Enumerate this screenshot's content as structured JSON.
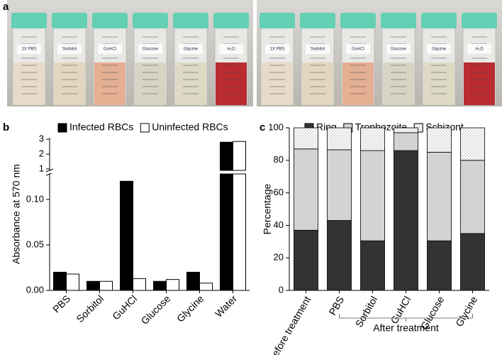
{
  "panel_labels": [
    "a",
    "b",
    "c"
  ],
  "photo": {
    "left_tube_labels": [
      "1X PBS",
      "Sorbitol",
      "GuHCl",
      "Glucose",
      "Glycine",
      "H₂O"
    ],
    "right_tube_labels": [
      "1X PBS",
      "Sorbitol",
      "GuHCl",
      "Glucose",
      "Glycine",
      "H₂O"
    ]
  },
  "chart_data": [
    {
      "type": "bar",
      "y_label": "Absorbance at 570 nm",
      "categories": [
        "PBS",
        "Sorbitol",
        "GuHCl",
        "Glucose",
        "Glycine",
        "Water"
      ],
      "series": [
        {
          "name": "Infected RBCs",
          "color": "#000000",
          "values": [
            0.02,
            0.01,
            0.12,
            0.01,
            0.02,
            2.8
          ]
        },
        {
          "name": "Uninfected RBCs",
          "color": "#ffffff",
          "values": [
            0.018,
            0.01,
            0.013,
            0.012,
            0.008,
            2.85
          ]
        }
      ],
      "ylim": [
        0,
        3.1
      ],
      "ybreak": [
        0.128,
        0.9
      ],
      "yticks": [
        {
          "value": 0,
          "label": "0.00"
        },
        0.05,
        {
          "value": 0.1,
          "label": "0.10"
        },
        1,
        2,
        3
      ],
      "legend": "top"
    },
    {
      "type": "stacked_bar",
      "y_label": "Percentage",
      "categories": [
        "Before treatment",
        "PBS",
        "Sorbitol",
        "GuHCl",
        "Glucose",
        "Glycine"
      ],
      "series": [
        {
          "name": "Ring",
          "color": "#333333",
          "values": [
            37,
            43,
            30.5,
            86,
            30.5,
            35
          ]
        },
        {
          "name": "Trophozoite",
          "color": "#d3d3d3",
          "values": [
            50,
            43.5,
            55.5,
            11,
            54.5,
            45
          ]
        },
        {
          "name": "Schizont",
          "color": "#ffffff",
          "pattern": "dots",
          "values": [
            13,
            13.5,
            14,
            3,
            15,
            20
          ]
        }
      ],
      "ylim": [
        0,
        100
      ],
      "yticks": [
        0,
        20,
        40,
        60,
        80,
        100
      ],
      "annotation": "After treatment",
      "legend": "top"
    }
  ]
}
